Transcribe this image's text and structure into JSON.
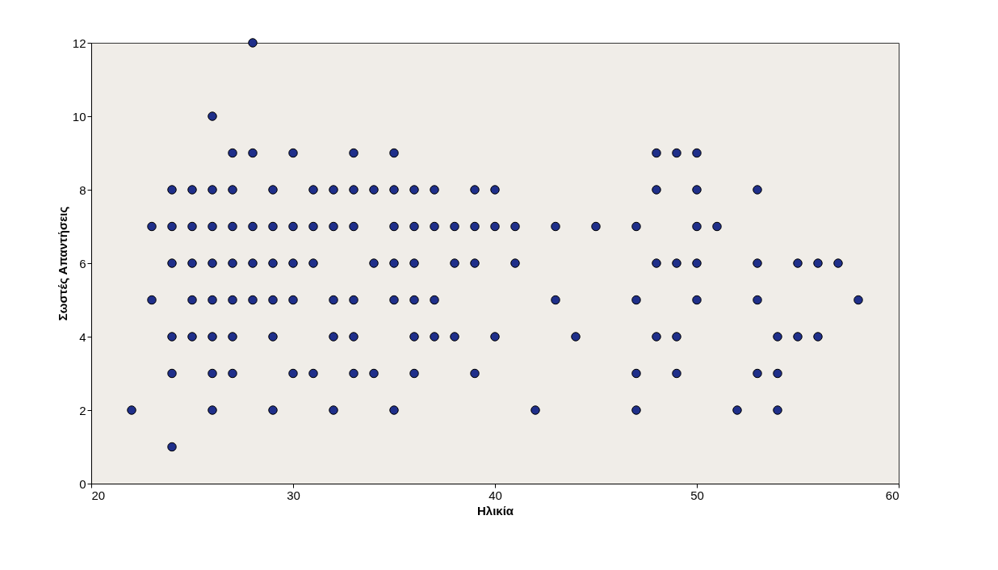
{
  "chart_data": {
    "type": "scatter",
    "xlabel": "Ηλικία",
    "ylabel": "Σωστές Απαντήσεις",
    "x": [
      22,
      23,
      23,
      24,
      24,
      24,
      24,
      24,
      24,
      25,
      25,
      25,
      25,
      25,
      26,
      26,
      26,
      26,
      26,
      26,
      26,
      26,
      27,
      27,
      27,
      27,
      27,
      27,
      27,
      28,
      28,
      28,
      28,
      28,
      29,
      29,
      29,
      29,
      29,
      29,
      30,
      30,
      30,
      30,
      30,
      31,
      31,
      31,
      31,
      32,
      32,
      32,
      32,
      32,
      33,
      33,
      33,
      33,
      33,
      33,
      34,
      34,
      34,
      35,
      35,
      35,
      35,
      35,
      35,
      36,
      36,
      36,
      36,
      36,
      36,
      37,
      37,
      37,
      37,
      38,
      38,
      38,
      39,
      39,
      39,
      39,
      40,
      40,
      40,
      41,
      41,
      42,
      43,
      43,
      44,
      45,
      47,
      47,
      47,
      47,
      48,
      48,
      48,
      48,
      49,
      49,
      49,
      49,
      50,
      50,
      50,
      50,
      50,
      51,
      52,
      53,
      53,
      53,
      53,
      54,
      54,
      54,
      55,
      55,
      56,
      56,
      57,
      58
    ],
    "series": [
      {
        "color": "#1f2f8a",
        "values": [
          2,
          7,
          5,
          8,
          7,
          6,
          4,
          3,
          1,
          8,
          7,
          6,
          5,
          4,
          10,
          8,
          7,
          6,
          5,
          4,
          3,
          2,
          9,
          8,
          7,
          6,
          5,
          4,
          3,
          12,
          9,
          7,
          6,
          5,
          8,
          7,
          6,
          5,
          4,
          2,
          9,
          7,
          6,
          5,
          3,
          8,
          7,
          6,
          3,
          8,
          7,
          5,
          4,
          2,
          9,
          8,
          7,
          5,
          4,
          3,
          8,
          6,
          3,
          9,
          8,
          7,
          6,
          5,
          2,
          8,
          7,
          6,
          5,
          4,
          3,
          8,
          7,
          5,
          4,
          7,
          6,
          4,
          8,
          7,
          6,
          3,
          8,
          7,
          4,
          7,
          6,
          2,
          7,
          5,
          4,
          7,
          7,
          5,
          3,
          2,
          9,
          8,
          6,
          4,
          9,
          6,
          4,
          3,
          9,
          8,
          7,
          6,
          5,
          7,
          2,
          8,
          6,
          5,
          3,
          4,
          3,
          2,
          6,
          4,
          6,
          4,
          6,
          5
        ]
      }
    ],
    "xlim": [
      20,
      60
    ],
    "xticks": [
      20,
      30,
      40,
      50,
      60
    ],
    "ylim": [
      0,
      12
    ],
    "yticks": [
      0,
      2,
      4,
      6,
      8,
      10,
      12
    ],
    "grid": false,
    "marker": "circle"
  }
}
